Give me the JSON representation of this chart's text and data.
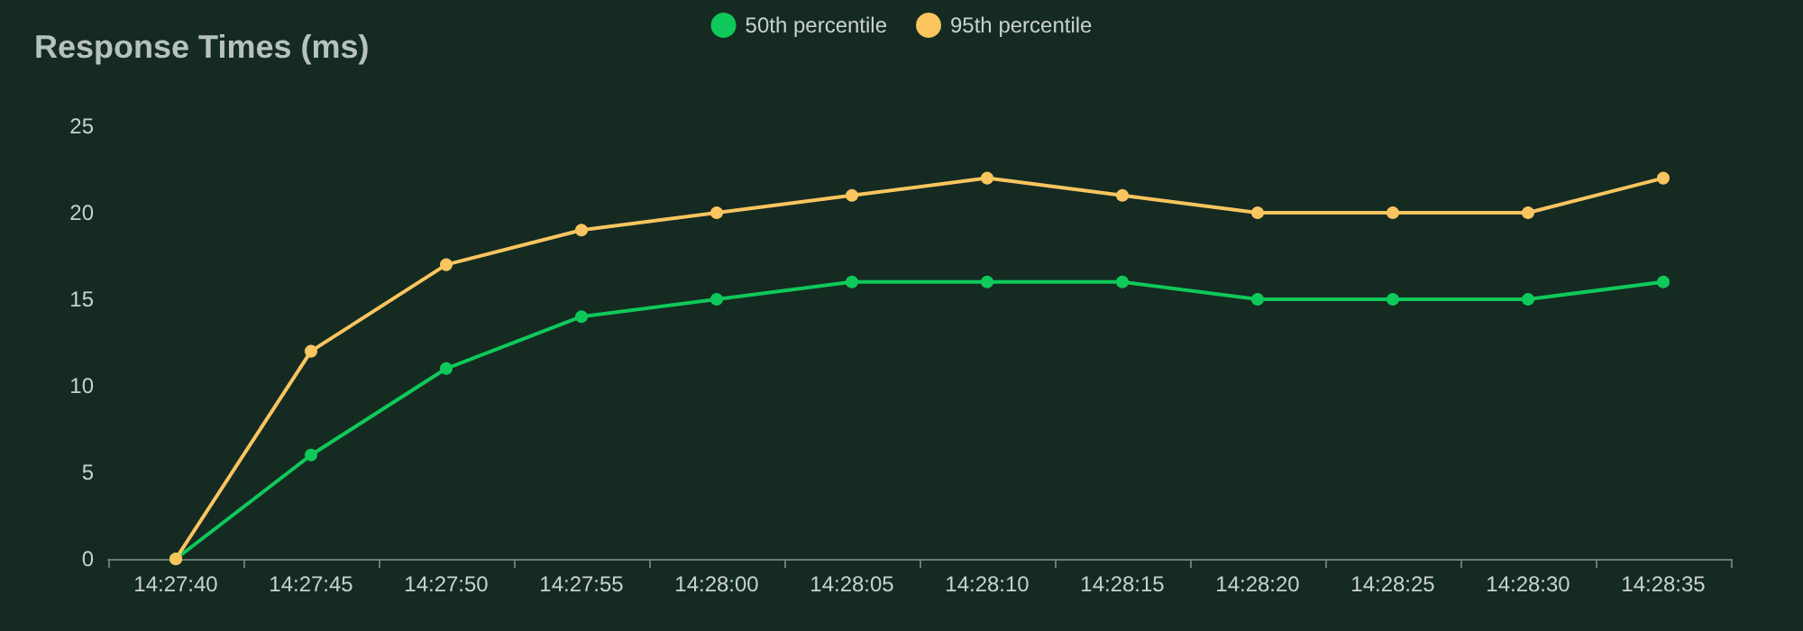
{
  "chart_data": {
    "type": "line",
    "title": "Response Times (ms)",
    "categories": [
      "14:27:40",
      "14:27:45",
      "14:27:50",
      "14:27:55",
      "14:28:00",
      "14:28:05",
      "14:28:10",
      "14:28:15",
      "14:28:20",
      "14:28:25",
      "14:28:30",
      "14:28:35"
    ],
    "series": [
      {
        "name": "50th percentile",
        "color": "#0fc95a",
        "values": [
          0,
          6,
          11,
          14,
          15,
          16,
          16,
          16,
          15,
          15,
          15,
          16
        ]
      },
      {
        "name": "95th percentile",
        "color": "#fcc55f",
        "values": [
          0,
          12,
          17,
          19,
          20,
          21,
          22,
          21,
          20,
          20,
          20,
          22
        ]
      }
    ],
    "ylim": [
      0,
      25
    ],
    "yticks": [
      0,
      5,
      10,
      15,
      20,
      25
    ],
    "grid": false,
    "legend": "top",
    "marker": "circle"
  }
}
